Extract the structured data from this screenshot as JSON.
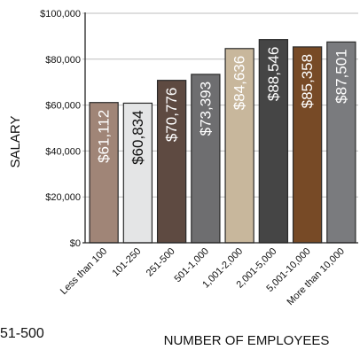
{
  "chart_data": {
    "type": "bar",
    "xlabel": "NUMBER OF EMPLOYEES",
    "ylabel": "SALARY",
    "ylim": [
      0,
      100000
    ],
    "yticks": [
      "$0",
      "$20,000",
      "$40,000",
      "$60,000",
      "$80,000",
      "$100,000"
    ],
    "ytick_values": [
      0,
      20000,
      40000,
      60000,
      80000,
      100000
    ],
    "grid": true,
    "categories": [
      "Less than 100",
      "101-250",
      "251-500",
      "501-1,000",
      "1,001-2,000",
      "2,001-5,000",
      "5,001-10,000",
      "More than 10,000"
    ],
    "values": [
      61112,
      60834,
      70776,
      73393,
      84636,
      88546,
      85358,
      87501
    ],
    "value_labels": [
      "$61,112",
      "$60,834",
      "$70,776",
      "$73,393",
      "$84,636",
      "$88,546",
      "$85,358",
      "$87,501"
    ],
    "bar_colors": [
      "#a08577",
      "#e4e5e6",
      "#5e4a41",
      "#6e6e70",
      "#c8b79c",
      "#454545",
      "#774a26",
      "#7a7b7e"
    ],
    "label_colors": [
      "#ffffff",
      "#111111",
      "#ffffff",
      "#ffffff",
      "#ffffff",
      "#ffffff",
      "#ffffff",
      "#ffffff"
    ]
  },
  "stray_text": "51-500"
}
